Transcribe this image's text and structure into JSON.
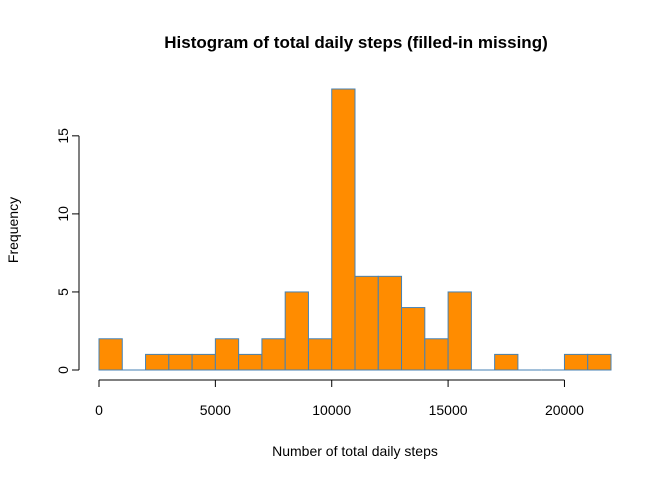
{
  "chart_data": {
    "type": "bar",
    "title": "Histogram of total daily steps (filled-in missing)",
    "xlabel": "Number of total daily steps",
    "ylabel": "Frequency",
    "bin_width": 1000,
    "bins": [
      {
        "start": 0,
        "end": 1000,
        "count": 2
      },
      {
        "start": 1000,
        "end": 2000,
        "count": 0
      },
      {
        "start": 2000,
        "end": 3000,
        "count": 1
      },
      {
        "start": 3000,
        "end": 4000,
        "count": 1
      },
      {
        "start": 4000,
        "end": 5000,
        "count": 1
      },
      {
        "start": 5000,
        "end": 6000,
        "count": 2
      },
      {
        "start": 6000,
        "end": 7000,
        "count": 1
      },
      {
        "start": 7000,
        "end": 8000,
        "count": 2
      },
      {
        "start": 8000,
        "end": 9000,
        "count": 5
      },
      {
        "start": 9000,
        "end": 10000,
        "count": 2
      },
      {
        "start": 10000,
        "end": 11000,
        "count": 18
      },
      {
        "start": 11000,
        "end": 12000,
        "count": 6
      },
      {
        "start": 12000,
        "end": 13000,
        "count": 6
      },
      {
        "start": 13000,
        "end": 14000,
        "count": 4
      },
      {
        "start": 14000,
        "end": 15000,
        "count": 2
      },
      {
        "start": 15000,
        "end": 16000,
        "count": 5
      },
      {
        "start": 16000,
        "end": 17000,
        "count": 0
      },
      {
        "start": 17000,
        "end": 18000,
        "count": 1
      },
      {
        "start": 18000,
        "end": 19000,
        "count": 0
      },
      {
        "start": 19000,
        "end": 20000,
        "count": 0
      },
      {
        "start": 20000,
        "end": 21000,
        "count": 1
      },
      {
        "start": 21000,
        "end": 22000,
        "count": 1
      }
    ],
    "xlim": [
      0,
      22000
    ],
    "ylim": [
      0,
      18
    ],
    "x_ticks": [
      0,
      5000,
      10000,
      15000,
      20000
    ],
    "x_tick_labels": [
      "0",
      "5000",
      "10000",
      "15000",
      "20000"
    ],
    "y_ticks": [
      0,
      5,
      10,
      15
    ],
    "y_tick_labels": [
      "0",
      "5",
      "10",
      "15"
    ],
    "bar_fill_color": "#ff8c00",
    "bar_border_color": "#4682b4",
    "grid": false,
    "legend": "none"
  }
}
